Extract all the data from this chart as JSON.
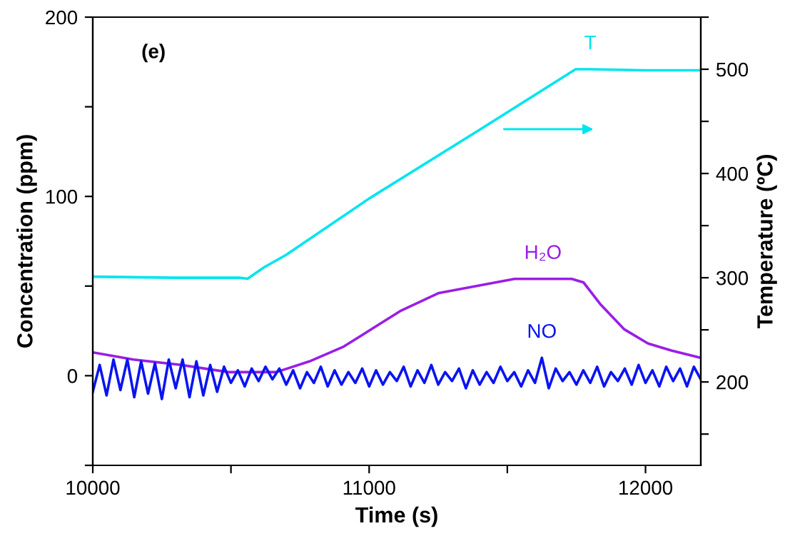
{
  "chart_data": {
    "type": "line",
    "xlabel": "Time (s)",
    "ylabel": "Concentration (ppm)",
    "y2label": "Temperature (ºC)",
    "xlim": [
      10000,
      12200
    ],
    "xticks": [
      10000,
      {
        "value": 10500,
        "label": null
      },
      11000,
      {
        "value": 11500,
        "label": null
      },
      12000
    ],
    "ylim": [
      -50,
      200
    ],
    "yticks": [
      {
        "value": -50,
        "label": null
      },
      0,
      {
        "value": 50,
        "label": null
      },
      100,
      {
        "value": 150,
        "label": null
      },
      200
    ],
    "y2lim": [
      120,
      550
    ],
    "y2ticks": [
      {
        "value": 150,
        "label": null
      },
      200,
      {
        "value": 250,
        "label": null
      },
      300,
      {
        "value": 350,
        "label": null
      },
      400,
      {
        "value": 450,
        "label": null
      },
      500,
      {
        "value": 550,
        "label": null
      }
    ],
    "grid": false,
    "legend": false,
    "series": [
      {
        "name": "T",
        "color": "#00e5ee",
        "axis": "y2",
        "x": [
          10000,
          10300,
          10530,
          10560,
          10620,
          10700,
          11000,
          11400,
          11747,
          11800,
          12000,
          12200
        ],
        "values": [
          301,
          300,
          300,
          299,
          310,
          322,
          376,
          442,
          500,
          500,
          499,
          499
        ]
      },
      {
        "name": "H₂O",
        "color": "#9a1ee6",
        "x": [
          10000,
          10147,
          10319,
          10491,
          10664,
          10784,
          10905,
          11009,
          11112,
          11250,
          11388,
          11526,
          11629,
          11733,
          11776,
          11836,
          11922,
          12009,
          12095,
          12198
        ],
        "values": [
          13,
          9,
          6,
          2,
          2,
          8,
          16,
          26,
          36,
          46,
          50,
          54,
          54,
          54,
          52,
          40,
          26,
          18,
          14,
          10
        ]
      },
      {
        "name": "NO",
        "color": "#0a14f0",
        "x": [
          10000,
          10025,
          10050,
          10075,
          10100,
          10125,
          10150,
          10175,
          10200,
          10225,
          10250,
          10275,
          10300,
          10325,
          10350,
          10375,
          10400,
          10425,
          10450,
          10475,
          10500,
          10525,
          10550,
          10575,
          10600,
          10625,
          10650,
          10675,
          10700,
          10725,
          10750,
          10775,
          10800,
          10825,
          10850,
          10875,
          10900,
          10925,
          10950,
          10975,
          11000,
          11025,
          11050,
          11075,
          11100,
          11125,
          11150,
          11175,
          11200,
          11225,
          11250,
          11275,
          11300,
          11325,
          11350,
          11375,
          11400,
          11425,
          11450,
          11475,
          11500,
          11525,
          11550,
          11575,
          11600,
          11625,
          11650,
          11675,
          11700,
          11725,
          11750,
          11775,
          11800,
          11825,
          11850,
          11875,
          11900,
          11925,
          11950,
          11975,
          12000,
          12025,
          12050,
          12075,
          12100,
          12125,
          12150,
          12175,
          12200
        ],
        "values": [
          -9,
          6,
          -11,
          9,
          -8,
          9,
          -12,
          8,
          -10,
          7,
          -13,
          9,
          -7,
          9,
          -12,
          8,
          -11,
          6,
          -9,
          5,
          -4,
          3,
          -6,
          4,
          -3,
          5,
          -2,
          4,
          -5,
          3,
          -7,
          2,
          -4,
          5,
          -6,
          3,
          -5,
          2,
          -4,
          4,
          -6,
          3,
          -5,
          2,
          -3,
          5,
          -6,
          3,
          -4,
          6,
          -5,
          2,
          -3,
          4,
          -7,
          3,
          -5,
          2,
          -4,
          5,
          -3,
          2,
          -6,
          3,
          -4,
          10,
          -7,
          4,
          -3,
          2,
          -5,
          3,
          -4,
          5,
          -6,
          2,
          -3,
          4,
          -5,
          6,
          -4,
          3,
          -6,
          5,
          -3,
          4,
          -6,
          5,
          -2
        ]
      }
    ],
    "annotations": [
      "(e)"
    ]
  }
}
